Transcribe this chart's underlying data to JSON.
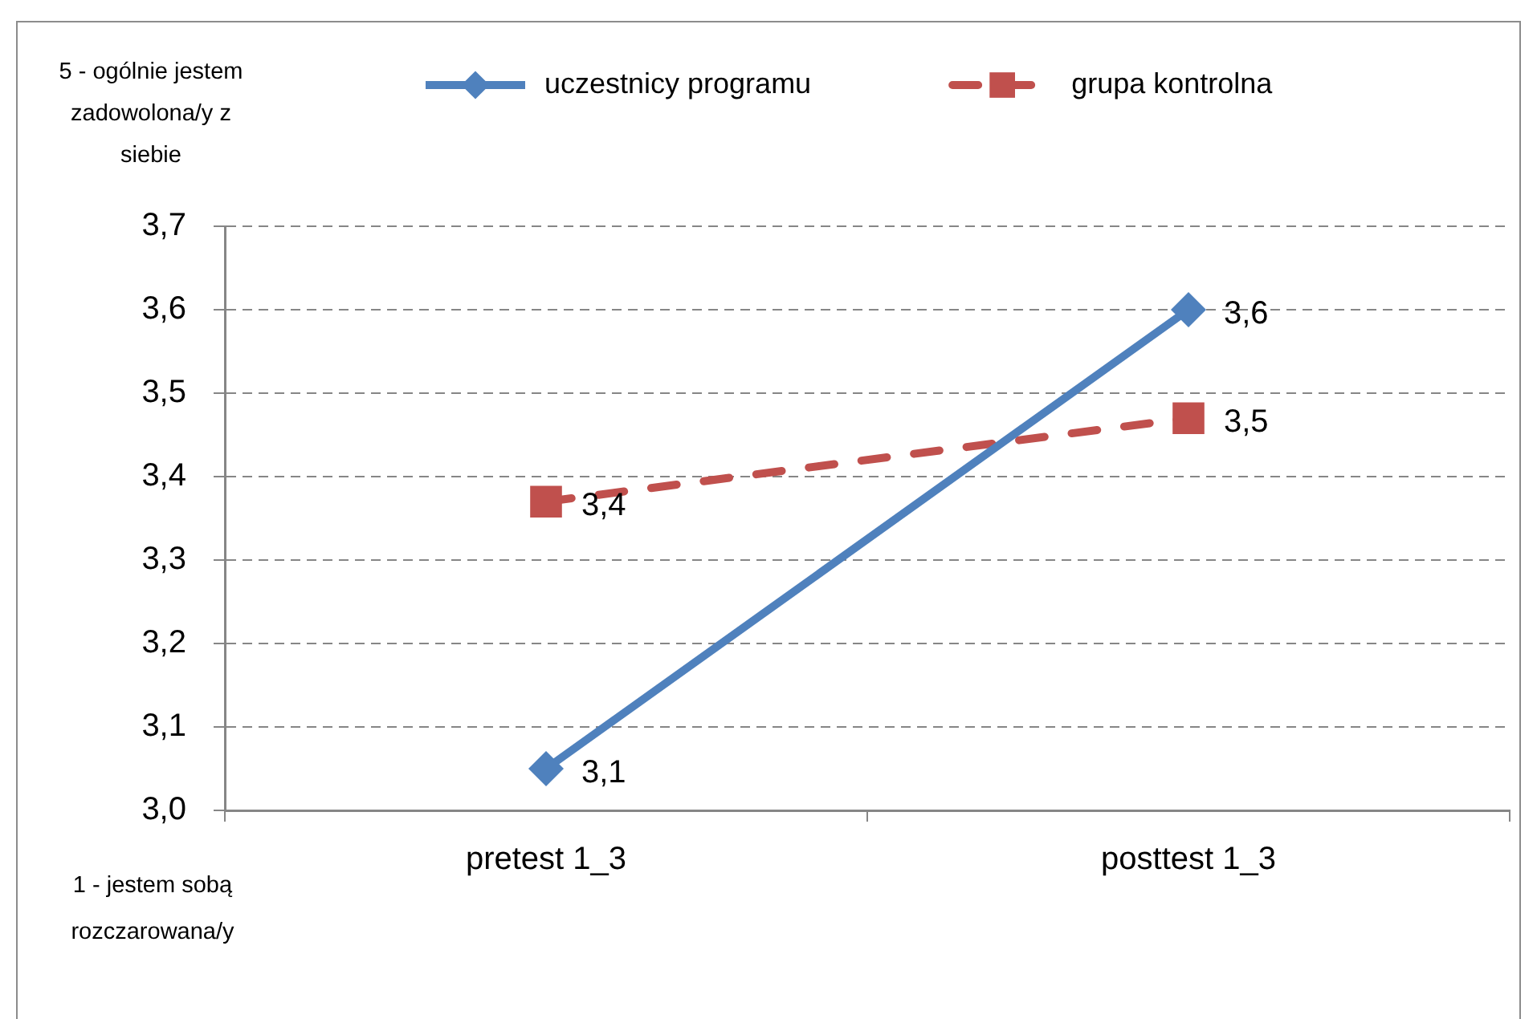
{
  "chart_data": {
    "type": "line",
    "categories": [
      "pretest 1_3",
      "posttest 1_3"
    ],
    "series": [
      {
        "name": "uczestnicy programu",
        "color": "#4f81bd",
        "values": [
          3.05,
          3.6
        ],
        "value_labels": [
          "3,1",
          "3,6"
        ],
        "marker": "diamond",
        "line_style": "solid"
      },
      {
        "name": "grupa kontrolna",
        "color": "#c0504d",
        "values": [
          3.37,
          3.47
        ],
        "value_labels": [
          "3,4",
          "3,5"
        ],
        "marker": "square",
        "line_style": "dashed"
      }
    ],
    "ylim": [
      3.0,
      3.7
    ],
    "yticks": [
      {
        "value": 3.0,
        "label": "3,0"
      },
      {
        "value": 3.1,
        "label": "3,1"
      },
      {
        "value": 3.2,
        "label": "3,2"
      },
      {
        "value": 3.3,
        "label": "3,3"
      },
      {
        "value": 3.4,
        "label": "3,4"
      },
      {
        "value": 3.5,
        "label": "3,5"
      },
      {
        "value": 3.6,
        "label": "3,6"
      },
      {
        "value": 3.7,
        "label": "3,7"
      }
    ],
    "grid": "y",
    "legend": "top",
    "annotations": [
      "5 - ogólnie jestem zadowolona/y z siebie",
      "1 - jestem sobą rozczarowana/y"
    ]
  }
}
